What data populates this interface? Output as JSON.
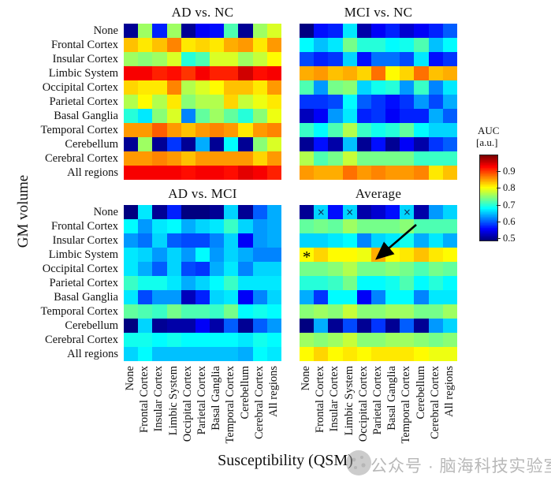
{
  "figure": {
    "y_axis_label": "GM volume",
    "x_axis_label": "Susceptibility (QSM)",
    "regions": [
      "None",
      "Frontal Cortex",
      "Insular Cortex",
      "Limbic System",
      "Occipital Cortex",
      "Parietal Cortex",
      "Basal Ganglia",
      "Temporal Cortex",
      "Cerebellum",
      "Cerebral Cortex",
      "All regions"
    ],
    "colorbar": {
      "title_line1": "AUC",
      "title_line2": "[a.u.]",
      "ticks": [
        0.9,
        0.8,
        0.7,
        0.6,
        0.5
      ],
      "vmin": 0.49,
      "vmax": 1.0,
      "colormap": "jet"
    }
  },
  "chart_data": [
    {
      "type": "heatmap",
      "title": "AD vs. NC",
      "x_categories": [
        "None",
        "Frontal Cortex",
        "Insular Cortex",
        "Limbic System",
        "Occipital Cortex",
        "Parietal Cortex",
        "Basal Ganglia",
        "Temporal Cortex",
        "Cerebellum",
        "Cerebral Cortex",
        "All regions"
      ],
      "y_categories": [
        "None",
        "Frontal Cortex",
        "Insular Cortex",
        "Limbic System",
        "Occipital Cortex",
        "Parietal Cortex",
        "Basal Ganglia",
        "Temporal Cortex",
        "Cerebellum",
        "Cerebral Cortex",
        "All regions"
      ],
      "values": [
        [
          0.5,
          0.76,
          0.57,
          0.76,
          0.5,
          0.55,
          0.56,
          0.72,
          0.5,
          0.76,
          0.79
        ],
        [
          0.84,
          0.82,
          0.84,
          0.87,
          0.82,
          0.83,
          0.82,
          0.85,
          0.86,
          0.82,
          0.86
        ],
        [
          0.76,
          0.75,
          0.76,
          0.79,
          0.7,
          0.72,
          0.79,
          0.79,
          0.76,
          0.78,
          0.81
        ],
        [
          0.94,
          0.94,
          0.92,
          0.93,
          0.91,
          0.94,
          0.92,
          0.92,
          0.96,
          0.93,
          0.94
        ],
        [
          0.83,
          0.82,
          0.82,
          0.87,
          0.77,
          0.79,
          0.81,
          0.84,
          0.84,
          0.82,
          0.86
        ],
        [
          0.77,
          0.81,
          0.77,
          0.82,
          0.75,
          0.77,
          0.77,
          0.83,
          0.78,
          0.8,
          0.82
        ],
        [
          0.7,
          0.67,
          0.75,
          0.79,
          0.62,
          0.73,
          0.76,
          0.73,
          0.7,
          0.75,
          0.8
        ],
        [
          0.86,
          0.86,
          0.89,
          0.86,
          0.84,
          0.86,
          0.87,
          0.86,
          0.82,
          0.86,
          0.87
        ],
        [
          0.5,
          0.76,
          0.5,
          0.58,
          0.5,
          0.64,
          0.5,
          0.68,
          0.5,
          0.75,
          0.79
        ],
        [
          0.86,
          0.86,
          0.87,
          0.86,
          0.84,
          0.86,
          0.86,
          0.86,
          0.86,
          0.83,
          0.86
        ],
        [
          0.94,
          0.94,
          0.94,
          0.94,
          0.93,
          0.94,
          0.94,
          0.93,
          0.95,
          0.94,
          0.92
        ]
      ]
    },
    {
      "type": "heatmap",
      "title": "MCI vs. NC",
      "x_categories": [
        "None",
        "Frontal Cortex",
        "Insular Cortex",
        "Limbic System",
        "Occipital Cortex",
        "Parietal Cortex",
        "Basal Ganglia",
        "Temporal Cortex",
        "Cerebellum",
        "Cerebral Cortex",
        "All regions"
      ],
      "y_categories": [
        "None",
        "Frontal Cortex",
        "Insular Cortex",
        "Limbic System",
        "Occipital Cortex",
        "Parietal Cortex",
        "Basal Ganglia",
        "Temporal Cortex",
        "Cerebellum",
        "Cerebral Cortex",
        "All regions"
      ],
      "values": [
        [
          0.48,
          0.56,
          0.57,
          0.67,
          0.51,
          0.55,
          0.57,
          0.53,
          0.55,
          0.57,
          0.6
        ],
        [
          0.68,
          0.65,
          0.67,
          0.74,
          0.7,
          0.7,
          0.68,
          0.69,
          0.72,
          0.65,
          0.68
        ],
        [
          0.59,
          0.57,
          0.58,
          0.66,
          0.56,
          0.61,
          0.61,
          0.59,
          0.67,
          0.56,
          0.58
        ],
        [
          0.85,
          0.86,
          0.84,
          0.85,
          0.83,
          0.88,
          0.81,
          0.83,
          0.88,
          0.84,
          0.85
        ],
        [
          0.72,
          0.63,
          0.74,
          0.75,
          0.66,
          0.69,
          0.7,
          0.63,
          0.71,
          0.62,
          0.67
        ],
        [
          0.58,
          0.58,
          0.59,
          0.68,
          0.6,
          0.58,
          0.56,
          0.58,
          0.63,
          0.59,
          0.64
        ],
        [
          0.52,
          0.55,
          0.63,
          0.67,
          0.57,
          0.58,
          0.55,
          0.57,
          0.57,
          0.64,
          0.6
        ],
        [
          0.71,
          0.68,
          0.72,
          0.77,
          0.71,
          0.69,
          0.7,
          0.73,
          0.68,
          0.66,
          0.66
        ],
        [
          0.5,
          0.56,
          0.51,
          0.65,
          0.5,
          0.56,
          0.5,
          0.55,
          0.51,
          0.58,
          0.6
        ],
        [
          0.77,
          0.72,
          0.74,
          0.78,
          0.74,
          0.74,
          0.74,
          0.74,
          0.71,
          0.71,
          0.71
        ],
        [
          0.86,
          0.85,
          0.85,
          0.88,
          0.86,
          0.87,
          0.86,
          0.86,
          0.87,
          0.82,
          0.84
        ]
      ]
    },
    {
      "type": "heatmap",
      "title": "AD vs. MCI",
      "x_categories": [
        "None",
        "Frontal Cortex",
        "Insular Cortex",
        "Limbic System",
        "Occipital Cortex",
        "Parietal Cortex",
        "Basal Ganglia",
        "Temporal Cortex",
        "Cerebellum",
        "Cerebral Cortex",
        "All regions"
      ],
      "y_categories": [
        "None",
        "Frontal Cortex",
        "Insular Cortex",
        "Limbic System",
        "Occipital Cortex",
        "Parietal Cortex",
        "Basal Ganglia",
        "Temporal Cortex",
        "Cerebellum",
        "Cerebral Cortex",
        "All regions"
      ],
      "values": [
        [
          0.49,
          0.67,
          0.5,
          0.57,
          0.49,
          0.49,
          0.5,
          0.66,
          0.5,
          0.6,
          0.64
        ],
        [
          0.68,
          0.63,
          0.67,
          0.68,
          0.64,
          0.66,
          0.67,
          0.71,
          0.66,
          0.63,
          0.64
        ],
        [
          0.63,
          0.61,
          0.66,
          0.6,
          0.59,
          0.59,
          0.62,
          0.66,
          0.55,
          0.63,
          0.64
        ],
        [
          0.67,
          0.66,
          0.63,
          0.66,
          0.63,
          0.68,
          0.63,
          0.66,
          0.64,
          0.62,
          0.62
        ],
        [
          0.67,
          0.64,
          0.6,
          0.66,
          0.59,
          0.58,
          0.64,
          0.67,
          0.62,
          0.66,
          0.66
        ],
        [
          0.71,
          0.69,
          0.69,
          0.67,
          0.64,
          0.66,
          0.68,
          0.71,
          0.67,
          0.67,
          0.67
        ],
        [
          0.67,
          0.59,
          0.63,
          0.63,
          0.52,
          0.57,
          0.66,
          0.67,
          0.55,
          0.62,
          0.66
        ],
        [
          0.73,
          0.72,
          0.71,
          0.74,
          0.72,
          0.72,
          0.71,
          0.74,
          0.68,
          0.69,
          0.68
        ],
        [
          0.49,
          0.66,
          0.5,
          0.51,
          0.51,
          0.55,
          0.51,
          0.6,
          0.5,
          0.6,
          0.63
        ],
        [
          0.69,
          0.69,
          0.68,
          0.69,
          0.68,
          0.68,
          0.68,
          0.68,
          0.67,
          0.69,
          0.68
        ],
        [
          0.66,
          0.68,
          0.65,
          0.65,
          0.65,
          0.65,
          0.65,
          0.65,
          0.64,
          0.68,
          0.67
        ]
      ]
    },
    {
      "type": "heatmap",
      "title": "Average",
      "x_categories": [
        "None",
        "Frontal Cortex",
        "Insular Cortex",
        "Limbic System",
        "Occipital Cortex",
        "Parietal Cortex",
        "Basal Ganglia",
        "Temporal Cortex",
        "Cerebellum",
        "Cerebral Cortex",
        "All regions"
      ],
      "y_categories": [
        "None",
        "Frontal Cortex",
        "Insular Cortex",
        "Limbic System",
        "Occipital Cortex",
        "Parietal Cortex",
        "Basal Ganglia",
        "Temporal Cortex",
        "Cerebellum",
        "Cerebral Cortex",
        "All regions"
      ],
      "values": [
        [
          0.5,
          0.66,
          0.56,
          0.66,
          0.51,
          0.53,
          0.56,
          0.66,
          0.51,
          0.63,
          0.66
        ],
        [
          0.73,
          0.74,
          0.73,
          0.76,
          0.74,
          0.74,
          0.74,
          0.75,
          0.72,
          0.72,
          0.72
        ],
        [
          0.66,
          0.66,
          0.67,
          0.68,
          0.62,
          0.66,
          0.67,
          0.69,
          0.64,
          0.67,
          0.64
        ],
        [
          0.81,
          0.83,
          0.81,
          0.81,
          0.8,
          0.85,
          0.81,
          0.82,
          0.84,
          0.82,
          0.81
        ],
        [
          0.74,
          0.74,
          0.75,
          0.77,
          0.74,
          0.74,
          0.75,
          0.74,
          0.72,
          0.74,
          0.73
        ],
        [
          0.7,
          0.7,
          0.71,
          0.74,
          0.68,
          0.68,
          0.69,
          0.72,
          0.68,
          0.7,
          0.68
        ],
        [
          0.64,
          0.58,
          0.68,
          0.68,
          0.55,
          0.62,
          0.68,
          0.68,
          0.62,
          0.67,
          0.67
        ],
        [
          0.75,
          0.76,
          0.75,
          0.78,
          0.75,
          0.75,
          0.76,
          0.76,
          0.74,
          0.74,
          0.76
        ],
        [
          0.49,
          0.64,
          0.5,
          0.59,
          0.5,
          0.58,
          0.5,
          0.6,
          0.5,
          0.63,
          0.66
        ],
        [
          0.76,
          0.75,
          0.76,
          0.78,
          0.75,
          0.75,
          0.76,
          0.76,
          0.75,
          0.74,
          0.75
        ],
        [
          0.81,
          0.83,
          0.81,
          0.82,
          0.81,
          0.82,
          0.82,
          0.82,
          0.81,
          0.8,
          0.8
        ]
      ],
      "annotations": {
        "x_markers": [
          [
            0,
            1
          ],
          [
            0,
            3
          ],
          [
            0,
            7
          ]
        ],
        "x_marker_glyph": "×",
        "star_marker": [
          3,
          0
        ],
        "star_glyph": "*",
        "arrow_points_to": [
          3,
          5
        ]
      }
    }
  ],
  "watermark": {
    "text": "公众号 · 脑海科技实验室"
  }
}
